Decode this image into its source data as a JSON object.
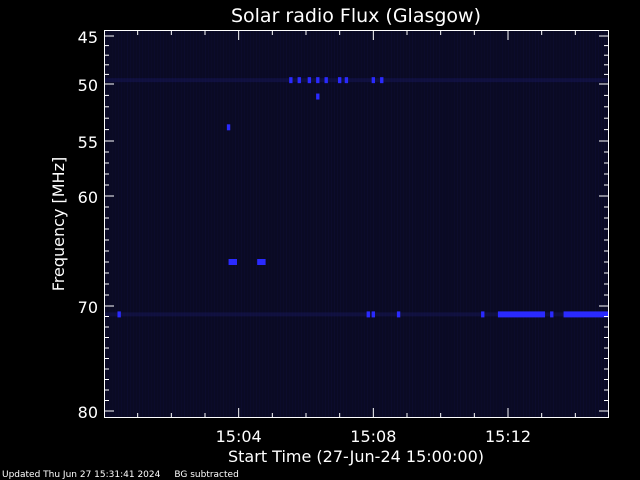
{
  "chart_data": {
    "type": "heatmap",
    "title": "Solar radio Flux (Glasgow)",
    "xlabel": "Start Time (27-Jun-24 15:00:00)",
    "ylabel": "Frequency [MHz]",
    "x_unit": "minutes after 15:00",
    "xlim": [
      0.0,
      15.0
    ],
    "ylim": [
      45,
      80
    ],
    "y_tick_values": [
      45,
      50,
      55,
      60,
      70,
      80
    ],
    "y_tick_labels": [
      "45",
      "50",
      "55",
      "60",
      "70",
      "80"
    ],
    "x_tick_values": [
      4,
      8,
      12
    ],
    "x_tick_labels": [
      "15:04",
      "15:08",
      "15:12"
    ],
    "background_color": "#0a0a24",
    "signal_color": "#2a2aff",
    "features": [
      {
        "freq_mhz": 49.6,
        "t_start": 5.5,
        "t_end": 5.6
      },
      {
        "freq_mhz": 49.6,
        "t_start": 5.75,
        "t_end": 5.85
      },
      {
        "freq_mhz": 49.6,
        "t_start": 6.05,
        "t_end": 6.15
      },
      {
        "freq_mhz": 49.6,
        "t_start": 6.3,
        "t_end": 6.4
      },
      {
        "freq_mhz": 49.6,
        "t_start": 6.55,
        "t_end": 6.65
      },
      {
        "freq_mhz": 49.6,
        "t_start": 6.95,
        "t_end": 7.05
      },
      {
        "freq_mhz": 49.6,
        "t_start": 7.15,
        "t_end": 7.25
      },
      {
        "freq_mhz": 49.6,
        "t_start": 7.95,
        "t_end": 8.05
      },
      {
        "freq_mhz": 49.6,
        "t_start": 8.2,
        "t_end": 8.3
      },
      {
        "freq_mhz": 51.1,
        "t_start": 6.3,
        "t_end": 6.4
      },
      {
        "freq_mhz": 53.8,
        "t_start": 3.65,
        "t_end": 3.75
      },
      {
        "freq_mhz": 66.0,
        "t_start": 3.7,
        "t_end": 3.95
      },
      {
        "freq_mhz": 66.0,
        "t_start": 4.55,
        "t_end": 4.8
      },
      {
        "freq_mhz": 70.8,
        "t_start": 0.4,
        "t_end": 0.5
      },
      {
        "freq_mhz": 70.8,
        "t_start": 7.8,
        "t_end": 7.9
      },
      {
        "freq_mhz": 70.8,
        "t_start": 7.95,
        "t_end": 8.05
      },
      {
        "freq_mhz": 70.8,
        "t_start": 8.7,
        "t_end": 8.8
      },
      {
        "freq_mhz": 70.8,
        "t_start": 11.2,
        "t_end": 11.3
      },
      {
        "freq_mhz": 70.8,
        "t_start": 11.7,
        "t_end": 13.1
      },
      {
        "freq_mhz": 70.8,
        "t_start": 13.25,
        "t_end": 13.35
      },
      {
        "freq_mhz": 70.8,
        "t_start": 13.65,
        "t_end": 15.0
      }
    ]
  },
  "footer": {
    "updated": "Updated Thu Jun 27 15:31:41 2024",
    "status": "BG subtracted"
  }
}
